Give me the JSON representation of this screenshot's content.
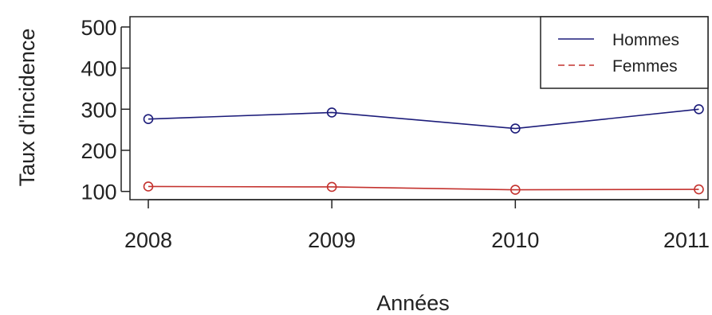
{
  "chart_data": {
    "type": "line",
    "title": "",
    "xlabel": "Années",
    "ylabel": "Taux d'incidence",
    "x": [
      2008,
      2009,
      2010,
      2011
    ],
    "x_tick_labels": [
      "2008",
      "2009",
      "2010",
      "2011"
    ],
    "y_ticks": [
      100,
      200,
      300,
      400,
      500
    ],
    "y_tick_labels": [
      "100",
      "200",
      "300",
      "400",
      "500"
    ],
    "xlim": [
      2007.9,
      2011.05
    ],
    "ylim": [
      80,
      525
    ],
    "grid": false,
    "legend_position": "top-right",
    "series": [
      {
        "name": "Hommes",
        "values": [
          276,
          292,
          253,
          300
        ],
        "color": "#1c1c7a",
        "line_style": "solid",
        "marker": "open-circle"
      },
      {
        "name": "Femmes",
        "values": [
          112,
          111,
          104,
          105
        ],
        "color": "#c4322e",
        "line_style": "dashed",
        "marker": "open-circle"
      }
    ]
  }
}
